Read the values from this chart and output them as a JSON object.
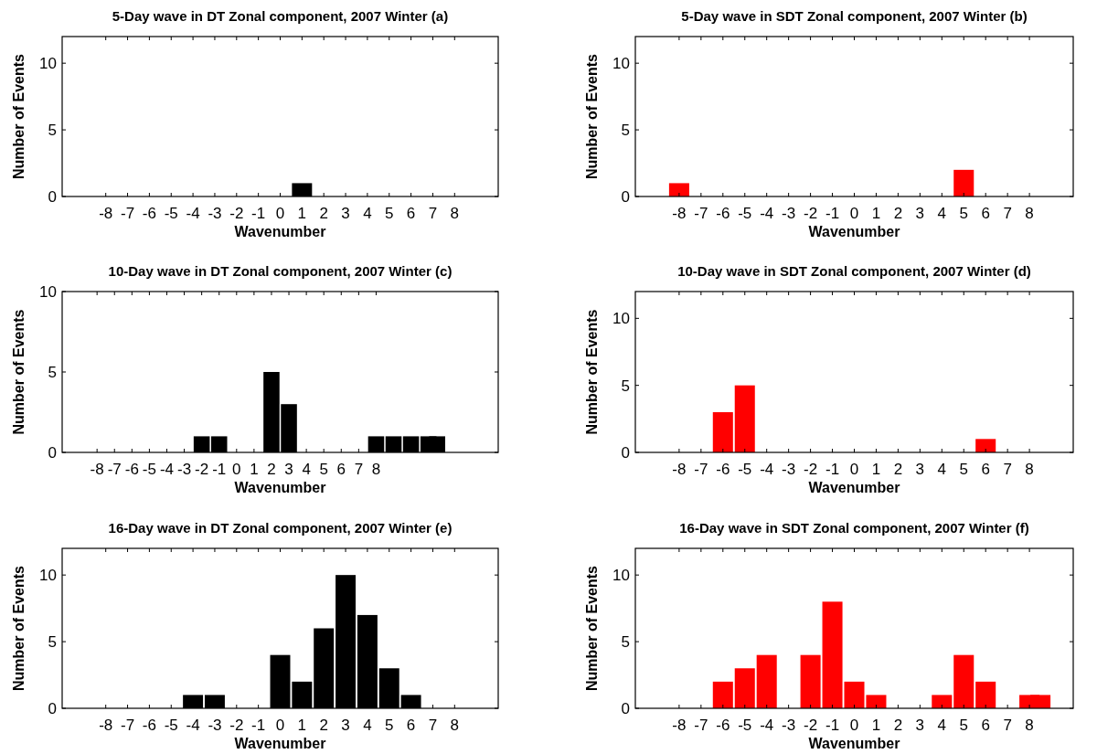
{
  "chart_data": [
    {
      "type": "bar",
      "title": "5-Day wave in DT Zonal component, 2007 Winter (a)",
      "xlabel": "Wavenumber",
      "ylabel": "Number of Events",
      "x": [
        1
      ],
      "values": [
        1
      ],
      "color": "#000000",
      "xlim": [
        -10,
        10
      ],
      "ylim": [
        0,
        12
      ],
      "xticks": [
        -8,
        -7,
        -6,
        -5,
        -4,
        -3,
        -2,
        -1,
        0,
        1,
        2,
        3,
        4,
        5,
        6,
        7,
        8
      ],
      "yticks": [
        0,
        5,
        10
      ]
    },
    {
      "type": "bar",
      "title": "5-Day wave in SDT Zonal component, 2007 Winter  (b)",
      "xlabel": "Wavenumber",
      "ylabel": "Number of Events",
      "x": [
        -8,
        5
      ],
      "values": [
        1,
        2
      ],
      "color": "#ff0000",
      "xlim": [
        -10,
        10
      ],
      "ylim": [
        0,
        12
      ],
      "xticks": [
        -8,
        -7,
        -6,
        -5,
        -4,
        -3,
        -2,
        -1,
        0,
        1,
        2,
        3,
        4,
        5,
        6,
        7,
        8
      ],
      "yticks": [
        0,
        5,
        10
      ]
    },
    {
      "type": "bar",
      "title": "10-Day wave in DT Zonal component, 2007 Winter  (c)",
      "xlabel": "Wavenumber",
      "ylabel": "Number of Events",
      "x": [
        -2,
        -1,
        2,
        3,
        8,
        9,
        10,
        11,
        11.5
      ],
      "values": [
        1,
        1,
        5,
        3,
        1,
        1,
        1,
        1,
        1
      ],
      "color": "#000000",
      "xlim": [
        -10,
        15
      ],
      "ylim": [
        0,
        10
      ],
      "xticks": [
        -8,
        -7,
        -6,
        -5,
        -4,
        -3,
        -2,
        -1,
        0,
        1,
        2,
        3,
        4,
        5,
        6,
        7,
        8
      ],
      "yticks": [
        0,
        5,
        10
      ]
    },
    {
      "type": "bar",
      "title": "10-Day wave in SDT Zonal component, 2007 Winter (d)",
      "xlabel": "Wavenumber",
      "ylabel": "Number of Events",
      "x": [
        -6,
        -5,
        6
      ],
      "values": [
        3,
        5,
        1
      ],
      "color": "#ff0000",
      "xlim": [
        -10,
        10
      ],
      "ylim": [
        0,
        12
      ],
      "xticks": [
        -8,
        -7,
        -6,
        -5,
        -4,
        -3,
        -2,
        -1,
        0,
        1,
        2,
        3,
        4,
        5,
        6,
        7,
        8
      ],
      "yticks": [
        0,
        5,
        10
      ]
    },
    {
      "type": "bar",
      "title": "16-Day wave in DT Zonal component, 2007 Winter  (e)",
      "xlabel": "Wavenumber",
      "ylabel": "Number of Events",
      "x": [
        -4,
        -3,
        0,
        1,
        2,
        3,
        4,
        5,
        6
      ],
      "values": [
        1,
        1,
        4,
        2,
        6,
        10,
        7,
        3,
        1
      ],
      "color": "#000000",
      "xlim": [
        -10,
        10
      ],
      "ylim": [
        0,
        12
      ],
      "xticks": [
        -8,
        -7,
        -6,
        -5,
        -4,
        -3,
        -2,
        -1,
        0,
        1,
        2,
        3,
        4,
        5,
        6,
        7,
        8
      ],
      "yticks": [
        0,
        5,
        10
      ]
    },
    {
      "type": "bar",
      "title": "16-Day wave in SDT Zonal component, 2007 Winter  (f)",
      "xlabel": "Wavenumber",
      "ylabel": "Number of Events",
      "x": [
        -6,
        -5,
        -4,
        -2,
        -1,
        0,
        1,
        4,
        5,
        6,
        8,
        8.5
      ],
      "values": [
        2,
        3,
        4,
        4,
        8,
        2,
        1,
        1,
        4,
        2,
        1,
        1
      ],
      "color": "#ff0000",
      "xlim": [
        -10,
        10
      ],
      "ylim": [
        0,
        12
      ],
      "xticks": [
        -8,
        -7,
        -6,
        -5,
        -4,
        -3,
        -2,
        -1,
        0,
        1,
        2,
        3,
        4,
        5,
        6,
        7,
        8
      ],
      "yticks": [
        0,
        5,
        10
      ]
    }
  ]
}
